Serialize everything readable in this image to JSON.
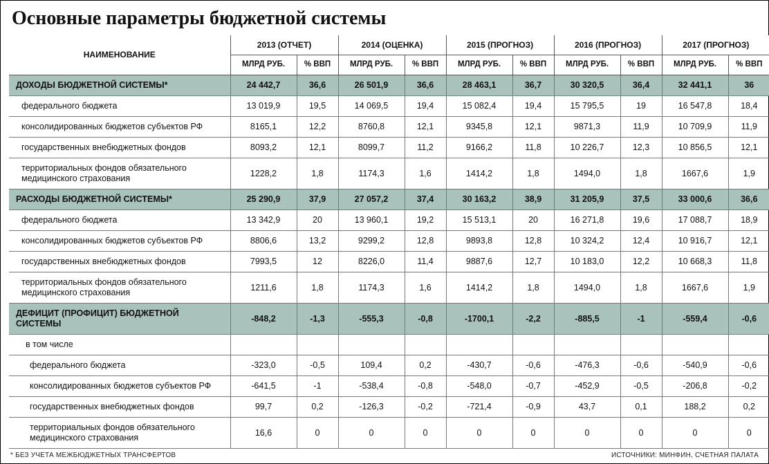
{
  "title": "Основные параметры бюджетной системы",
  "column_name_header": "НАИМЕНОВАНИЕ",
  "sub_headers": {
    "value": "МЛРД РУБ.",
    "pct": "% ВВП"
  },
  "years": [
    "2013 (ОТЧЕТ)",
    "2014 (ОЦЕНКА)",
    "2015 (ПРОГНОЗ)",
    "2016 (ПРОГНОЗ)",
    "2017 (ПРОГНОЗ)"
  ],
  "sections": [
    {
      "title": "ДОХОДЫ БЮДЖЕТНОЙ СИСТЕМЫ*",
      "totals": [
        {
          "v": "24 442,7",
          "p": "36,6"
        },
        {
          "v": "26 501,9",
          "p": "36,6"
        },
        {
          "v": "28 463,1",
          "p": "36,7"
        },
        {
          "v": "30 320,5",
          "p": "36,4"
        },
        {
          "v": "32 441,1",
          "p": "36"
        }
      ],
      "rows": [
        {
          "label": "федерального бюджета",
          "cells": [
            {
              "v": "13 019,9",
              "p": "19,5"
            },
            {
              "v": "14 069,5",
              "p": "19,4"
            },
            {
              "v": "15 082,4",
              "p": "19,4"
            },
            {
              "v": "15 795,5",
              "p": "19"
            },
            {
              "v": "16 547,8",
              "p": "18,4"
            }
          ]
        },
        {
          "label": "консолидированных бюджетов субъектов РФ",
          "cells": [
            {
              "v": "8165,1",
              "p": "12,2"
            },
            {
              "v": "8760,8",
              "p": "12,1"
            },
            {
              "v": "9345,8",
              "p": "12,1"
            },
            {
              "v": "9871,3",
              "p": "11,9"
            },
            {
              "v": "10 709,9",
              "p": "11,9"
            }
          ]
        },
        {
          "label": "государственных внебюджетных фондов",
          "cells": [
            {
              "v": "8093,2",
              "p": "12,1"
            },
            {
              "v": "8099,7",
              "p": "11,2"
            },
            {
              "v": "9166,2",
              "p": "11,8"
            },
            {
              "v": "10 226,7",
              "p": "12,3"
            },
            {
              "v": "10 856,5",
              "p": "12,1"
            }
          ]
        },
        {
          "label": "территориальных фондов обязательного медицинского страхования",
          "cells": [
            {
              "v": "1228,2",
              "p": "1,8"
            },
            {
              "v": "1174,3",
              "p": "1,6"
            },
            {
              "v": "1414,2",
              "p": "1,8"
            },
            {
              "v": "1494,0",
              "p": "1,8"
            },
            {
              "v": "1667,6",
              "p": "1,9"
            }
          ]
        }
      ]
    },
    {
      "title": "РАСХОДЫ БЮДЖЕТНОЙ СИСТЕМЫ*",
      "totals": [
        {
          "v": "25 290,9",
          "p": "37,9"
        },
        {
          "v": "27 057,2",
          "p": "37,4"
        },
        {
          "v": "30 163,2",
          "p": "38,9"
        },
        {
          "v": "31 205,9",
          "p": "37,5"
        },
        {
          "v": "33 000,6",
          "p": "36,6"
        }
      ],
      "rows": [
        {
          "label": "федерального бюджета",
          "cells": [
            {
              "v": "13 342,9",
              "p": "20"
            },
            {
              "v": "13 960,1",
              "p": "19,2"
            },
            {
              "v": "15 513,1",
              "p": "20"
            },
            {
              "v": "16 271,8",
              "p": "19,6"
            },
            {
              "v": "17 088,7",
              "p": "18,9"
            }
          ]
        },
        {
          "label": "консолидированных бюджетов субъектов РФ",
          "cells": [
            {
              "v": "8806,6",
              "p": "13,2"
            },
            {
              "v": "9299,2",
              "p": "12,8"
            },
            {
              "v": "9893,8",
              "p": "12,8"
            },
            {
              "v": "10 324,2",
              "p": "12,4"
            },
            {
              "v": "10 916,7",
              "p": "12,1"
            }
          ]
        },
        {
          "label": "государственных внебюджетных фондов",
          "cells": [
            {
              "v": "7993,5",
              "p": "12"
            },
            {
              "v": "8226,0",
              "p": "11,4"
            },
            {
              "v": "9887,6",
              "p": "12,7"
            },
            {
              "v": "10 183,0",
              "p": "12,2"
            },
            {
              "v": "10 668,3",
              "p": "11,8"
            }
          ]
        },
        {
          "label": "территориальных фондов обязательного медицинского страхования",
          "cells": [
            {
              "v": "1211,6",
              "p": "1,8"
            },
            {
              "v": "1174,3",
              "p": "1,6"
            },
            {
              "v": "1414,2",
              "p": "1,8"
            },
            {
              "v": "1494,0",
              "p": "1,8"
            },
            {
              "v": "1667,6",
              "p": "1,9"
            }
          ]
        }
      ]
    },
    {
      "title": "ДЕФИЦИТ (ПРОФИЦИТ) БЮДЖЕТНОЙ СИСТЕМЫ",
      "totals": [
        {
          "v": "-848,2",
          "p": "-1,3"
        },
        {
          "v": "-555,3",
          "p": "-0,8"
        },
        {
          "v": "-1700,1",
          "p": "-2,2"
        },
        {
          "v": "-885,5",
          "p": "-1"
        },
        {
          "v": "-559,4",
          "p": "-0,6"
        }
      ],
      "subtext": "в том числе",
      "rows": [
        {
          "indent": true,
          "label": "федерального бюджета",
          "cells": [
            {
              "v": "-323,0",
              "p": "-0,5"
            },
            {
              "v": "109,4",
              "p": "0,2"
            },
            {
              "v": "-430,7",
              "p": "-0,6"
            },
            {
              "v": "-476,3",
              "p": "-0,6"
            },
            {
              "v": "-540,9",
              "p": "-0,6"
            }
          ]
        },
        {
          "indent": true,
          "label": "консолидированных бюджетов субъектов РФ",
          "cells": [
            {
              "v": "-641,5",
              "p": "-1"
            },
            {
              "v": "-538,4",
              "p": "-0,8"
            },
            {
              "v": "-548,0",
              "p": "-0,7"
            },
            {
              "v": "-452,9",
              "p": "-0,5"
            },
            {
              "v": "-206,8",
              "p": "-0,2"
            }
          ]
        },
        {
          "indent": true,
          "label": "государственных внебюджетных фондов",
          "cells": [
            {
              "v": "99,7",
              "p": "0,2"
            },
            {
              "v": "-126,3",
              "p": "-0,2"
            },
            {
              "v": "-721,4",
              "p": "-0,9"
            },
            {
              "v": "43,7",
              "p": "0,1"
            },
            {
              "v": "188,2",
              "p": "0,2"
            }
          ]
        },
        {
          "indent": true,
          "label": "территориальных фондов обязательного медицинского страхования",
          "cells": [
            {
              "v": "16,6",
              "p": "0"
            },
            {
              "v": "0",
              "p": "0"
            },
            {
              "v": "0",
              "p": "0"
            },
            {
              "v": "0",
              "p": "0"
            },
            {
              "v": "0",
              "p": "0"
            }
          ]
        }
      ]
    }
  ],
  "footnote_left": "* БЕЗ УЧЕТА МЕЖБЮДЖЕТНЫХ ТРАНСФЕРТОВ",
  "footnote_right": "ИСТОЧНИКИ: МИНФИН, СЧЕТНАЯ ПАЛАТА",
  "style": {
    "section_bg": "#a9c2bb",
    "border_color": "#777777",
    "title_fontsize": 28,
    "body_fontsize": 12.5
  }
}
